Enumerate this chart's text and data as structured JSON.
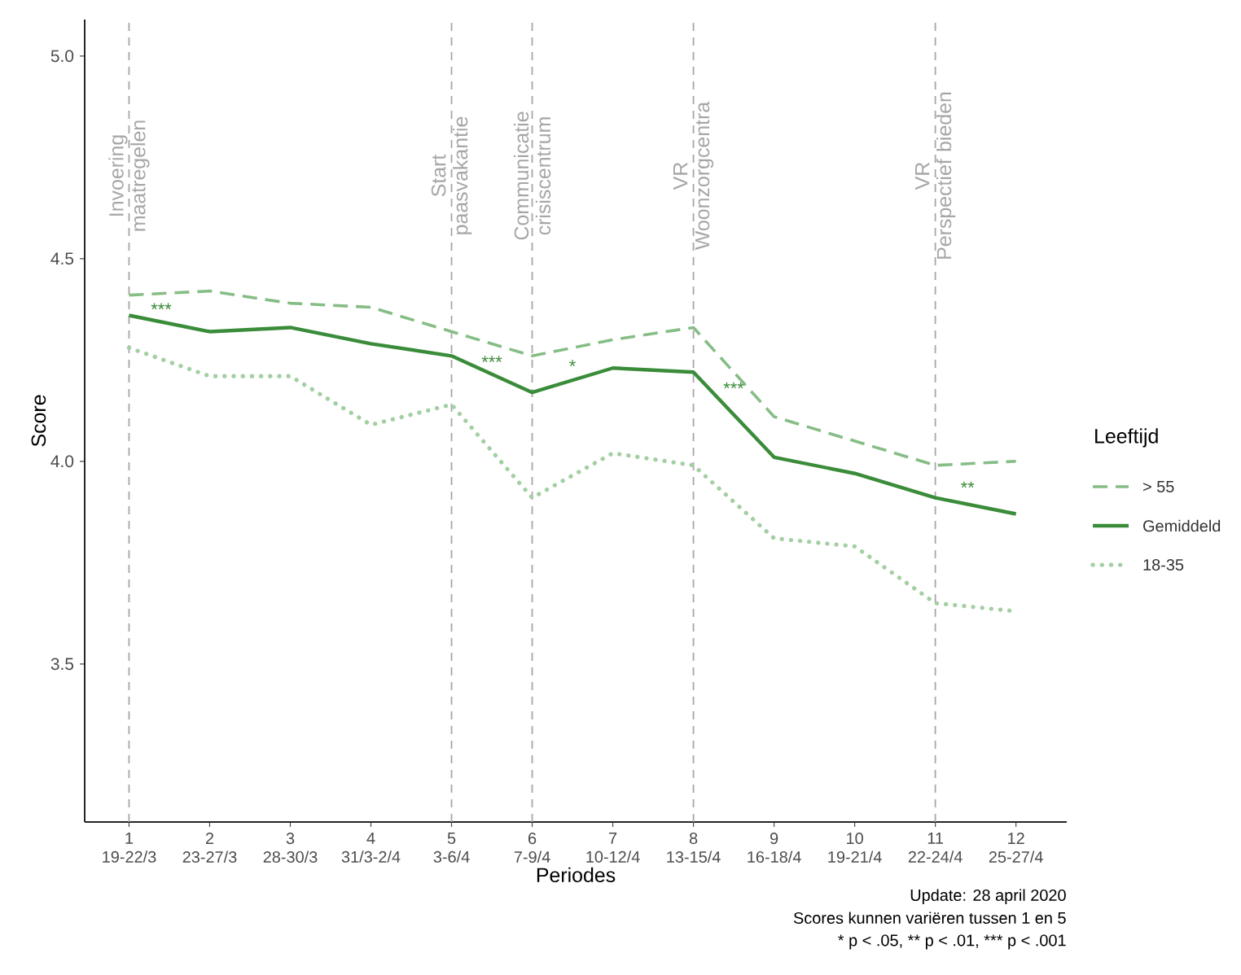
{
  "chart_data": {
    "type": "line",
    "xlabel": "Periodes",
    "ylabel": "Score",
    "legend_title": "Leeftijd",
    "categories": [
      "1\n19-22/3",
      "2\n23-27/3",
      "3\n28-30/3",
      "4\n31/3-2/4",
      "5\n3-6/4",
      "6\n7-9/4",
      "7\n10-12/4",
      "8\n13-15/4",
      "9\n16-18/4",
      "10\n19-21/4",
      "11\n22-24/4",
      "12\n25-27/4"
    ],
    "ylim": [
      3.11,
      5.09
    ],
    "yticks": [
      {
        "value": 3.5,
        "label": "3.5"
      },
      {
        "value": 4.0,
        "label": "4.0"
      },
      {
        "value": 4.5,
        "label": "4.5"
      },
      {
        "value": 5.0,
        "label": "5.0"
      }
    ],
    "series": [
      {
        "name": "> 55",
        "color": "#86bd86",
        "line_style": "dashed",
        "values": [
          4.41,
          4.42,
          4.39,
          4.38,
          4.32,
          4.26,
          4.3,
          4.33,
          4.11,
          4.05,
          3.99,
          4.0
        ]
      },
      {
        "name": "Gemiddeld",
        "color": "#3a8c3a",
        "line_style": "solid",
        "values": [
          4.36,
          4.32,
          4.33,
          4.29,
          4.26,
          4.17,
          4.23,
          4.22,
          4.01,
          3.97,
          3.91,
          3.87
        ]
      },
      {
        "name": "18-35",
        "color": "#a3cfa3",
        "line_style": "dotted",
        "values": [
          4.28,
          4.21,
          4.21,
          4.09,
          4.14,
          3.91,
          4.02,
          3.99,
          3.81,
          3.79,
          3.65,
          3.63
        ]
      }
    ],
    "ref_lines": [
      {
        "axis": "x",
        "value": "1\n19-22/3",
        "label": "Invoering\nmaatregelen",
        "color": "#a6a6a6",
        "line_style": "dashed"
      },
      {
        "axis": "x",
        "value": "5\n3-6/4",
        "label": "Start\npaasvakantie",
        "color": "#a6a6a6",
        "line_style": "dashed"
      },
      {
        "axis": "x",
        "value": "6\n7-9/4",
        "label": "Communicatie\ncrisiscentrum",
        "color": "#a6a6a6",
        "line_style": "dashed"
      },
      {
        "axis": "x",
        "value": "8\n13-15/4",
        "label": "VR\nWoonzorgcentra",
        "color": "#a6a6a6",
        "line_style": "dashed"
      },
      {
        "axis": "x",
        "value": "11\n22-24/4",
        "label": "VR\nPerspectief bieden",
        "color": "#a6a6a6",
        "line_style": "dashed"
      }
    ],
    "annotations": [
      "***",
      "***",
      "*",
      "***",
      "**",
      "Update: 28 april 2020",
      "Scores kunnen variëren tussen 1 en 5",
      "* p < .05, ** p < .01, *** p < .001"
    ],
    "legend": "right",
    "grid": false,
    "marker": "none"
  }
}
